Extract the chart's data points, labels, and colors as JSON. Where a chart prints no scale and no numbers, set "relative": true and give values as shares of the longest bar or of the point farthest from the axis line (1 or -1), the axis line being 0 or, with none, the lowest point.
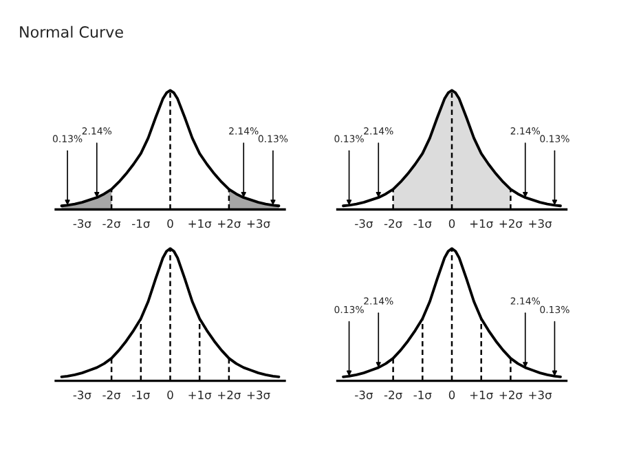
{
  "chart_data": [
    {
      "type": "line",
      "title": "Normal Curve",
      "relative": true,
      "x": [
        -3.7,
        -3.5,
        -3.25,
        -3,
        -2.75,
        -2.5,
        -2.25,
        -2,
        -1.75,
        -1.5,
        -1.25,
        -1,
        -0.75,
        -0.5,
        -0.25,
        -0.125,
        0,
        0.125,
        0.25,
        0.5,
        0.75,
        1,
        1.25,
        1.5,
        1.75,
        2,
        2.25,
        2.5,
        2.75,
        3,
        3.25,
        3.5,
        3.7
      ],
      "series": [
        {
          "type": "area",
          "color": "#a6a6a6",
          "x": [
            -3.7,
            -3.5,
            -3.25,
            -3,
            -2.75,
            -2.5,
            -2.25,
            -2
          ],
          "values": [
            0.03,
            0.035,
            0.045,
            0.06,
            0.08,
            0.1,
            0.13,
            0.17
          ]
        },
        {
          "type": "area",
          "color": "#a6a6a6",
          "x": [
            2,
            2.25,
            2.5,
            2.75,
            3,
            3.25,
            3.5,
            3.7
          ],
          "values": [
            0.17,
            0.13,
            0.1,
            0.08,
            0.06,
            0.045,
            0.035,
            0.03
          ]
        },
        {
          "color": "#000000",
          "values": [
            0.03,
            0.035,
            0.045,
            0.06,
            0.08,
            0.1,
            0.13,
            0.17,
            0.23,
            0.3,
            0.38,
            0.47,
            0.6,
            0.77,
            0.93,
            0.98,
            1,
            0.98,
            0.93,
            0.77,
            0.6,
            0.47,
            0.38,
            0.3,
            0.23,
            0.17,
            0.13,
            0.1,
            0.08,
            0.06,
            0.045,
            0.035,
            0.03
          ]
        }
      ],
      "xlim": [
        -3.9,
        3.9
      ],
      "xticks": [
        {
          "value": -3,
          "label": "-3σ"
        },
        {
          "value": -2,
          "label": "-2σ"
        },
        {
          "value": -1,
          "label": "-1σ"
        },
        0,
        {
          "value": 1,
          "label": "+1σ"
        },
        {
          "value": 2,
          "label": "+2σ"
        },
        {
          "value": 3,
          "label": "+3σ"
        }
      ],
      "ref_lines": [
        {
          "axis": "x",
          "value": -2,
          "line_style": "dashed"
        },
        {
          "axis": "x",
          "value": 0,
          "line_style": "dashed"
        },
        {
          "axis": "x",
          "value": 2,
          "line_style": "dashed"
        }
      ],
      "annotations": [
        {
          "text": "0.13%",
          "x": -3.5,
          "y": 0.035
        },
        {
          "text": "2.14%",
          "x": -2.5,
          "y": 0.1
        },
        {
          "text": "2.14%",
          "x": 2.5,
          "y": 0.1
        },
        {
          "text": "0.13%",
          "x": 3.5,
          "y": 0.035
        }
      ]
    },
    {
      "type": "line",
      "relative": true,
      "x": [
        -3.7,
        -3.5,
        -3.25,
        -3,
        -2.75,
        -2.5,
        -2.25,
        -2,
        -1.75,
        -1.5,
        -1.25,
        -1,
        -0.75,
        -0.5,
        -0.25,
        -0.125,
        0,
        0.125,
        0.25,
        0.5,
        0.75,
        1,
        1.25,
        1.5,
        1.75,
        2,
        2.25,
        2.5,
        2.75,
        3,
        3.25,
        3.5,
        3.7
      ],
      "series": [
        {
          "type": "area",
          "color": "#dcdcdc",
          "x": [
            -2,
            -1.75,
            -1.5,
            -1.25,
            -1,
            -0.75,
            -0.5,
            -0.25,
            -0.125,
            0,
            0.125,
            0.25,
            0.5,
            0.75,
            1,
            1.25,
            1.5,
            1.75,
            2
          ],
          "values": [
            0.17,
            0.23,
            0.3,
            0.38,
            0.47,
            0.6,
            0.77,
            0.93,
            0.98,
            1,
            0.98,
            0.93,
            0.77,
            0.6,
            0.47,
            0.38,
            0.3,
            0.23,
            0.17
          ]
        },
        {
          "color": "#000000",
          "values": [
            0.03,
            0.035,
            0.045,
            0.06,
            0.08,
            0.1,
            0.13,
            0.17,
            0.23,
            0.3,
            0.38,
            0.47,
            0.6,
            0.77,
            0.93,
            0.98,
            1,
            0.98,
            0.93,
            0.77,
            0.6,
            0.47,
            0.38,
            0.3,
            0.23,
            0.17,
            0.13,
            0.1,
            0.08,
            0.06,
            0.045,
            0.035,
            0.03
          ]
        }
      ],
      "xlim": [
        -3.9,
        3.9
      ],
      "xticks": [
        {
          "value": -3,
          "label": "-3σ"
        },
        {
          "value": -2,
          "label": "-2σ"
        },
        {
          "value": -1,
          "label": "-1σ"
        },
        0,
        {
          "value": 1,
          "label": "+1σ"
        },
        {
          "value": 2,
          "label": "+2σ"
        },
        {
          "value": 3,
          "label": "+3σ"
        }
      ],
      "ref_lines": [
        {
          "axis": "x",
          "value": -2,
          "line_style": "dashed"
        },
        {
          "axis": "x",
          "value": 0,
          "line_style": "dashed"
        },
        {
          "axis": "x",
          "value": 2,
          "line_style": "dashed"
        }
      ],
      "annotations": [
        {
          "text": "0.13%",
          "x": -3.5,
          "y": 0.035
        },
        {
          "text": "2.14%",
          "x": -2.5,
          "y": 0.1
        },
        {
          "text": "2.14%",
          "x": 2.5,
          "y": 0.1
        },
        {
          "text": "0.13%",
          "x": 3.5,
          "y": 0.035
        }
      ]
    },
    {
      "type": "line",
      "relative": true,
      "x": [
        -3.7,
        -3.5,
        -3.25,
        -3,
        -2.75,
        -2.5,
        -2.25,
        -2,
        -1.75,
        -1.5,
        -1.25,
        -1,
        -0.75,
        -0.5,
        -0.25,
        -0.125,
        0,
        0.125,
        0.25,
        0.5,
        0.75,
        1,
        1.25,
        1.5,
        1.75,
        2,
        2.25,
        2.5,
        2.75,
        3,
        3.25,
        3.5,
        3.7
      ],
      "series": [
        {
          "color": "#000000",
          "values": [
            0.03,
            0.035,
            0.045,
            0.06,
            0.08,
            0.1,
            0.13,
            0.17,
            0.23,
            0.3,
            0.38,
            0.47,
            0.6,
            0.77,
            0.93,
            0.98,
            1,
            0.98,
            0.93,
            0.77,
            0.6,
            0.47,
            0.38,
            0.3,
            0.23,
            0.17,
            0.13,
            0.1,
            0.08,
            0.06,
            0.045,
            0.035,
            0.03
          ]
        }
      ],
      "xlim": [
        -3.9,
        3.9
      ],
      "xticks": [
        {
          "value": -3,
          "label": "-3σ"
        },
        {
          "value": -2,
          "label": "-2σ"
        },
        {
          "value": -1,
          "label": "-1σ"
        },
        0,
        {
          "value": 1,
          "label": "+1σ"
        },
        {
          "value": 2,
          "label": "+2σ"
        },
        {
          "value": 3,
          "label": "+3σ"
        }
      ],
      "ref_lines": [
        {
          "axis": "x",
          "value": -2,
          "line_style": "dashed"
        },
        {
          "axis": "x",
          "value": -1,
          "line_style": "dashed"
        },
        {
          "axis": "x",
          "value": 0,
          "line_style": "dashed"
        },
        {
          "axis": "x",
          "value": 1,
          "line_style": "dashed"
        },
        {
          "axis": "x",
          "value": 2,
          "line_style": "dashed"
        }
      ]
    },
    {
      "type": "line",
      "relative": true,
      "x": [
        -3.7,
        -3.5,
        -3.25,
        -3,
        -2.75,
        -2.5,
        -2.25,
        -2,
        -1.75,
        -1.5,
        -1.25,
        -1,
        -0.75,
        -0.5,
        -0.25,
        -0.125,
        0,
        0.125,
        0.25,
        0.5,
        0.75,
        1,
        1.25,
        1.5,
        1.75,
        2,
        2.25,
        2.5,
        2.75,
        3,
        3.25,
        3.5,
        3.7
      ],
      "series": [
        {
          "color": "#000000",
          "values": [
            0.03,
            0.035,
            0.045,
            0.06,
            0.08,
            0.1,
            0.13,
            0.17,
            0.23,
            0.3,
            0.38,
            0.47,
            0.6,
            0.77,
            0.93,
            0.98,
            1,
            0.98,
            0.93,
            0.77,
            0.6,
            0.47,
            0.38,
            0.3,
            0.23,
            0.17,
            0.13,
            0.1,
            0.08,
            0.06,
            0.045,
            0.035,
            0.03
          ]
        }
      ],
      "xlim": [
        -3.9,
        3.9
      ],
      "xticks": [
        {
          "value": -3,
          "label": "-3σ"
        },
        {
          "value": -2,
          "label": "-2σ"
        },
        {
          "value": -1,
          "label": "-1σ"
        },
        0,
        {
          "value": 1,
          "label": "+1σ"
        },
        {
          "value": 2,
          "label": "+2σ"
        },
        {
          "value": 3,
          "label": "+3σ"
        }
      ],
      "ref_lines": [
        {
          "axis": "x",
          "value": -2,
          "line_style": "dashed"
        },
        {
          "axis": "x",
          "value": -1,
          "line_style": "dashed"
        },
        {
          "axis": "x",
          "value": 0,
          "line_style": "dashed"
        },
        {
          "axis": "x",
          "value": 1,
          "line_style": "dashed"
        },
        {
          "axis": "x",
          "value": 2,
          "line_style": "dashed"
        }
      ],
      "annotations": [
        {
          "text": "0.13%",
          "x": -3.5,
          "y": 0.035
        },
        {
          "text": "2.14%",
          "x": -2.5,
          "y": 0.1
        },
        {
          "text": "2.14%",
          "x": 2.5,
          "y": 0.1
        },
        {
          "text": "0.13%",
          "x": 3.5,
          "y": 0.035
        }
      ]
    }
  ]
}
